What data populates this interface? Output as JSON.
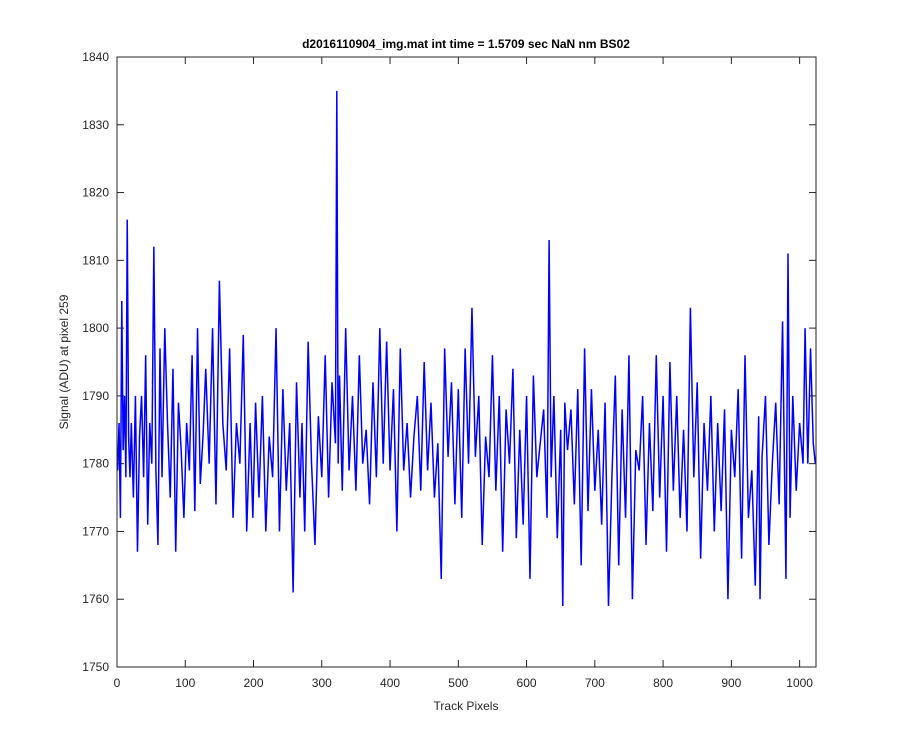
{
  "chart_data": {
    "type": "line",
    "title": "d2016110904_img.mat int time = 1.5709 sec  NaN nm BS02",
    "xlabel": "Track Pixels",
    "ylabel": "Signal (ADU) at pixel 259",
    "xlim": [
      0,
      1024
    ],
    "ylim": [
      1750,
      1840
    ],
    "x_ticks": [
      0,
      100,
      200,
      300,
      400,
      500,
      600,
      700,
      800,
      900,
      1000
    ],
    "y_ticks": [
      1750,
      1760,
      1770,
      1780,
      1790,
      1800,
      1810,
      1820,
      1830,
      1840
    ],
    "x_tick_labels": [
      "0",
      "100",
      "200",
      "300",
      "400",
      "500",
      "600",
      "700",
      "800",
      "900",
      "1000"
    ],
    "y_tick_labels": [
      "1750",
      "1760",
      "1770",
      "1780",
      "1790",
      "1800",
      "1810",
      "1820",
      "1830",
      "1840"
    ],
    "grid": false,
    "series": [
      {
        "color": "#0000ff",
        "x": [
          1,
          3,
          5,
          7,
          9,
          11,
          13,
          15,
          17,
          19,
          21,
          24,
          27,
          30,
          33,
          36,
          39,
          42,
          45,
          48,
          51,
          54,
          57,
          60,
          63,
          66,
          70,
          74,
          78,
          82,
          86,
          90,
          94,
          98,
          102,
          106,
          110,
          114,
          118,
          122,
          126,
          130,
          135,
          140,
          145,
          150,
          155,
          160,
          165,
          170,
          175,
          180,
          185,
          190,
          195,
          199,
          203,
          208,
          213,
          218,
          223,
          228,
          233,
          238,
          243,
          248,
          253,
          258,
          263,
          268,
          271,
          275,
          280,
          285,
          290,
          295,
          300,
          305,
          310,
          315,
          320,
          322,
          324,
          326,
          330,
          335,
          340,
          345,
          350,
          355,
          360,
          365,
          370,
          375,
          380,
          385,
          390,
          395,
          400,
          405,
          410,
          415,
          420,
          425,
          430,
          435,
          440,
          445,
          450,
          455,
          460,
          465,
          470,
          475,
          480,
          485,
          490,
          495,
          500,
          505,
          510,
          515,
          520,
          525,
          530,
          535,
          540,
          545,
          550,
          555,
          560,
          565,
          570,
          575,
          580,
          585,
          590,
          595,
          600,
          605,
          610,
          615,
          620,
          625,
          630,
          633,
          636,
          640,
          645,
          650,
          653,
          656,
          660,
          665,
          670,
          675,
          680,
          685,
          690,
          695,
          700,
          705,
          710,
          715,
          720,
          725,
          730,
          735,
          740,
          745,
          750,
          755,
          760,
          765,
          770,
          775,
          780,
          785,
          790,
          795,
          800,
          805,
          810,
          815,
          820,
          825,
          830,
          835,
          840,
          845,
          850,
          855,
          860,
          865,
          870,
          875,
          880,
          885,
          890,
          895,
          900,
          905,
          910,
          915,
          920,
          925,
          930,
          935,
          940,
          942,
          945,
          950,
          955,
          960,
          965,
          970,
          975,
          980,
          983,
          986,
          990,
          995,
          1000,
          1005,
          1008,
          1012,
          1016,
          1020,
          1023
        ],
        "y": [
          1779,
          1786,
          1772,
          1804,
          1782,
          1790,
          1778,
          1816,
          1784,
          1778,
          1786,
          1775,
          1790,
          1767,
          1784,
          1790,
          1778,
          1796,
          1771,
          1786,
          1780,
          1812,
          1779,
          1768,
          1797,
          1778,
          1800,
          1786,
          1775,
          1794,
          1767,
          1789,
          1782,
          1772,
          1786,
          1779,
          1796,
          1773,
          1800,
          1777,
          1784,
          1794,
          1780,
          1800,
          1774,
          1807,
          1786,
          1779,
          1797,
          1772,
          1786,
          1780,
          1799,
          1770,
          1786,
          1772,
          1789,
          1775,
          1790,
          1770,
          1784,
          1778,
          1800,
          1770,
          1791,
          1776,
          1786,
          1761,
          1792,
          1775,
          1786,
          1770,
          1798,
          1780,
          1768,
          1787,
          1778,
          1796,
          1775,
          1792,
          1783,
          1835,
          1780,
          1793,
          1776,
          1800,
          1779,
          1790,
          1776,
          1796,
          1780,
          1785,
          1774,
          1792,
          1778,
          1800,
          1780,
          1798,
          1779,
          1791,
          1770,
          1797,
          1779,
          1786,
          1775,
          1784,
          1790,
          1776,
          1795,
          1779,
          1789,
          1775,
          1783,
          1763,
          1797,
          1781,
          1792,
          1774,
          1791,
          1772,
          1797,
          1780,
          1803,
          1781,
          1790,
          1768,
          1784,
          1778,
          1796,
          1776,
          1790,
          1767,
          1788,
          1780,
          1794,
          1769,
          1785,
          1771,
          1790,
          1763,
          1793,
          1778,
          1783,
          1788,
          1772,
          1813,
          1778,
          1790,
          1769,
          1785,
          1759,
          1789,
          1782,
          1788,
          1774,
          1791,
          1765,
          1797,
          1773,
          1791,
          1776,
          1785,
          1771,
          1789,
          1759,
          1778,
          1793,
          1765,
          1788,
          1772,
          1796,
          1760,
          1782,
          1779,
          1790,
          1768,
          1786,
          1773,
          1796,
          1775,
          1790,
          1767,
          1795,
          1776,
          1790,
          1772,
          1785,
          1770,
          1803,
          1778,
          1792,
          1766,
          1786,
          1776,
          1790,
          1770,
          1786,
          1773,
          1788,
          1760,
          1785,
          1778,
          1791,
          1766,
          1796,
          1772,
          1779,
          1762,
          1787,
          1760,
          1781,
          1790,
          1768,
          1780,
          1789,
          1774,
          1801,
          1763,
          1811,
          1772,
          1790,
          1776,
          1786,
          1780,
          1800,
          1780,
          1797,
          1783,
          1780
        ]
      }
    ]
  }
}
